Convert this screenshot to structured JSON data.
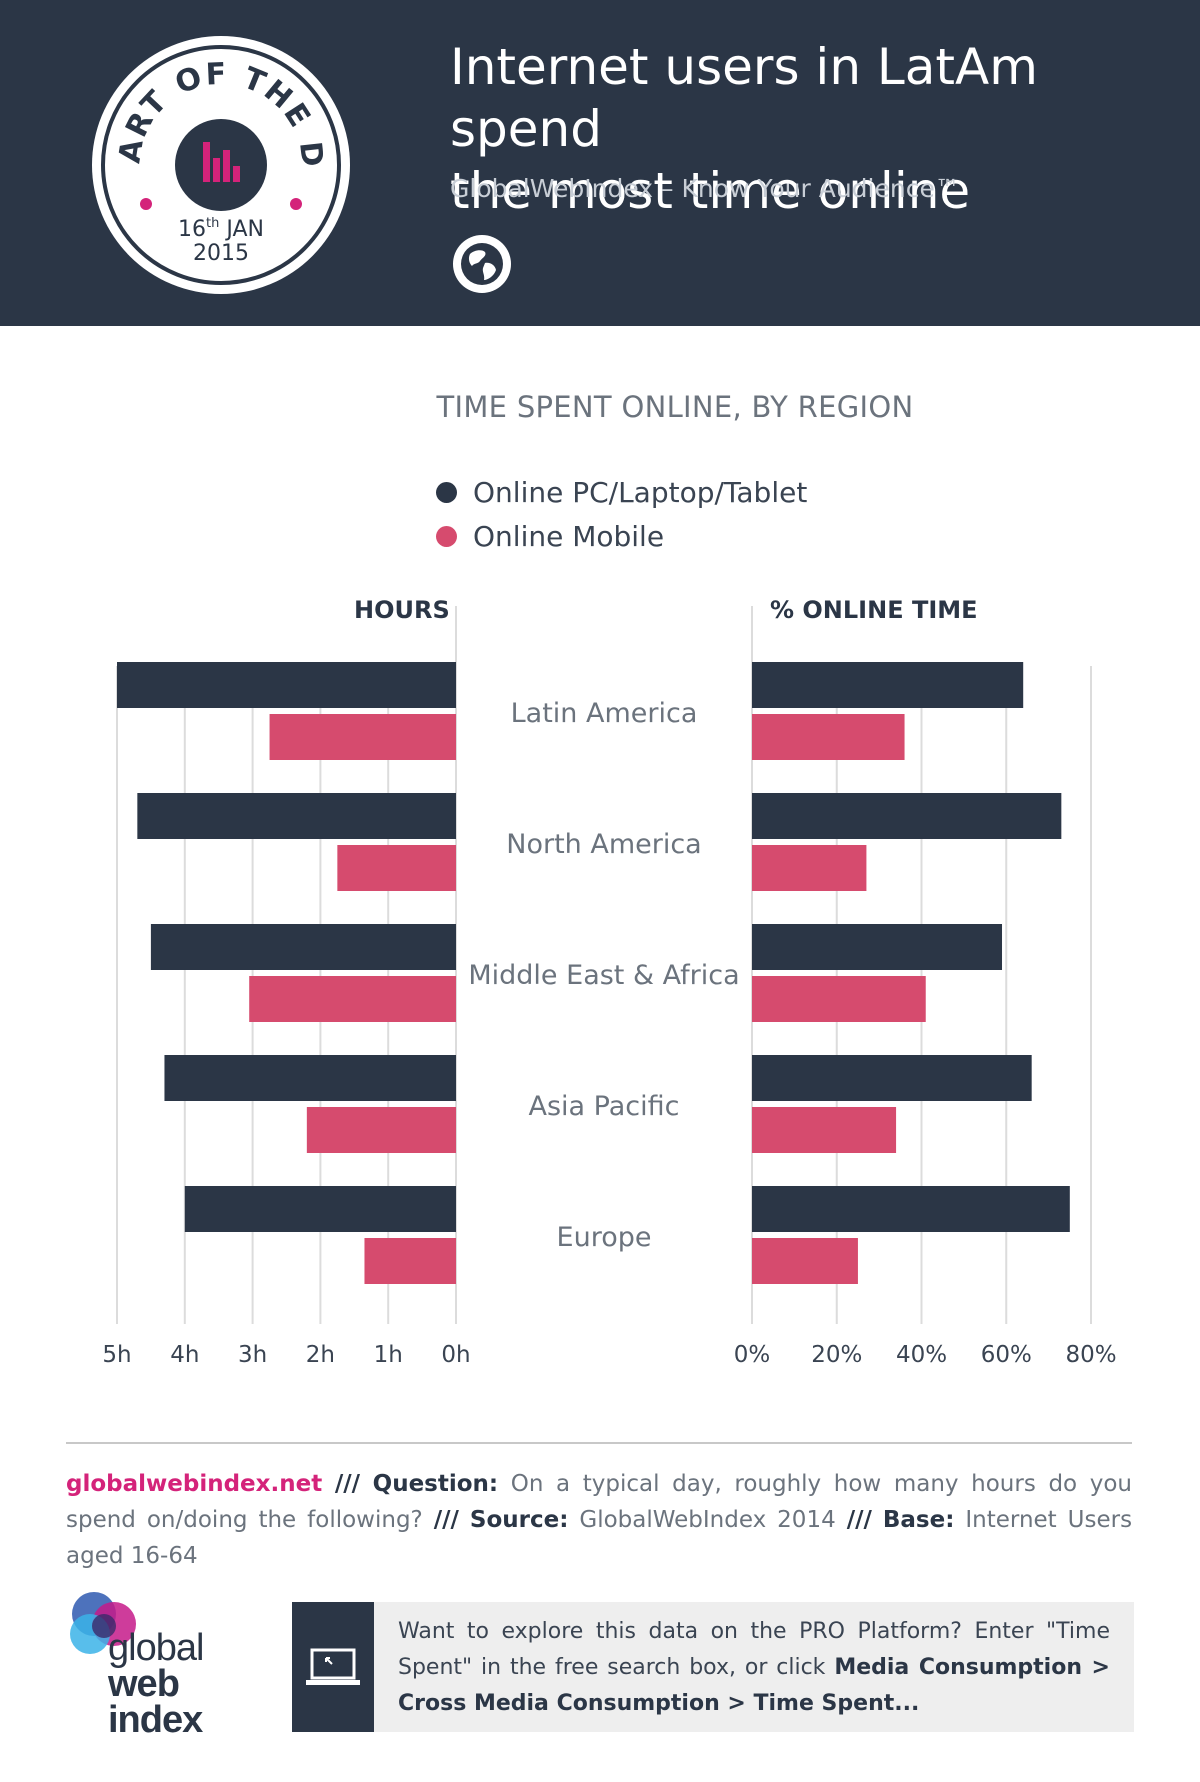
{
  "header": {
    "title_line1": "Internet users in LatAm spend",
    "title_line2": "the most time online",
    "subtitle": "GlobalWebIndex – Know Your Audience™",
    "badge_arc_text": "CHART OF THE DAY",
    "badge_day": "16",
    "badge_day_suffix": "th",
    "badge_month": "JAN",
    "badge_year": "2015"
  },
  "colors": {
    "navy": "#2b3646",
    "pink": "#d64b6e",
    "magenta": "#d4237a"
  },
  "chart_data": {
    "type": "bar",
    "title": "TIME SPENT ONLINE, BY REGION",
    "categories": [
      "Latin America",
      "North America",
      "Middle East & Africa",
      "Asia Pacific",
      "Europe"
    ],
    "legend": [
      {
        "name": "Online PC/Laptop/Tablet",
        "color": "#2b3646"
      },
      {
        "name": "Online Mobile",
        "color": "#d64b6e"
      }
    ],
    "panels": [
      {
        "label": "HOURS",
        "unit": "hours",
        "xlim": [
          0,
          5
        ],
        "ticks": [
          5,
          4,
          3,
          2,
          1,
          0
        ],
        "tick_labels": [
          "5h",
          "4h",
          "3h",
          "2h",
          "1h",
          "0h"
        ],
        "direction": "left",
        "series": [
          {
            "name": "Online PC/Laptop/Tablet",
            "values": [
              5.0,
              4.7,
              4.5,
              4.3,
              4.0
            ]
          },
          {
            "name": "Online Mobile",
            "values": [
              2.75,
              1.75,
              3.05,
              2.2,
              1.35
            ]
          }
        ]
      },
      {
        "label": "% ONLINE TIME",
        "unit": "percent",
        "xlim": [
          0,
          80
        ],
        "ticks": [
          0,
          20,
          40,
          60,
          80
        ],
        "tick_labels": [
          "0%",
          "20%",
          "40%",
          "60%",
          "80%"
        ],
        "direction": "right",
        "series": [
          {
            "name": "Online PC/Laptop/Tablet",
            "values": [
              64,
              73,
              59,
              66,
              75
            ]
          },
          {
            "name": "Online Mobile",
            "values": [
              36,
              27,
              41,
              34,
              25
            ]
          }
        ]
      }
    ],
    "grid": true
  },
  "footer": {
    "link": "globalwebindex.net",
    "sep": "///",
    "question_label": "Question:",
    "question_text": "On a typical day, roughly how many hours do you spend on/doing the following?",
    "source_label": "Source:",
    "source_text": "GlobalWebIndex 2014",
    "base_label": "Base:",
    "base_text": "Internet Users aged 16-64"
  },
  "logo": {
    "line1": "global",
    "line2": "web",
    "line3": "index"
  },
  "cta": {
    "text1": "Want to explore this data on the PRO Platform? Enter \"Time Spent\" in the free search box, or click",
    "bold1": "Media Consumption > Cross Media Consumption > Time Spent...",
    "icon": "laptop-icon"
  }
}
